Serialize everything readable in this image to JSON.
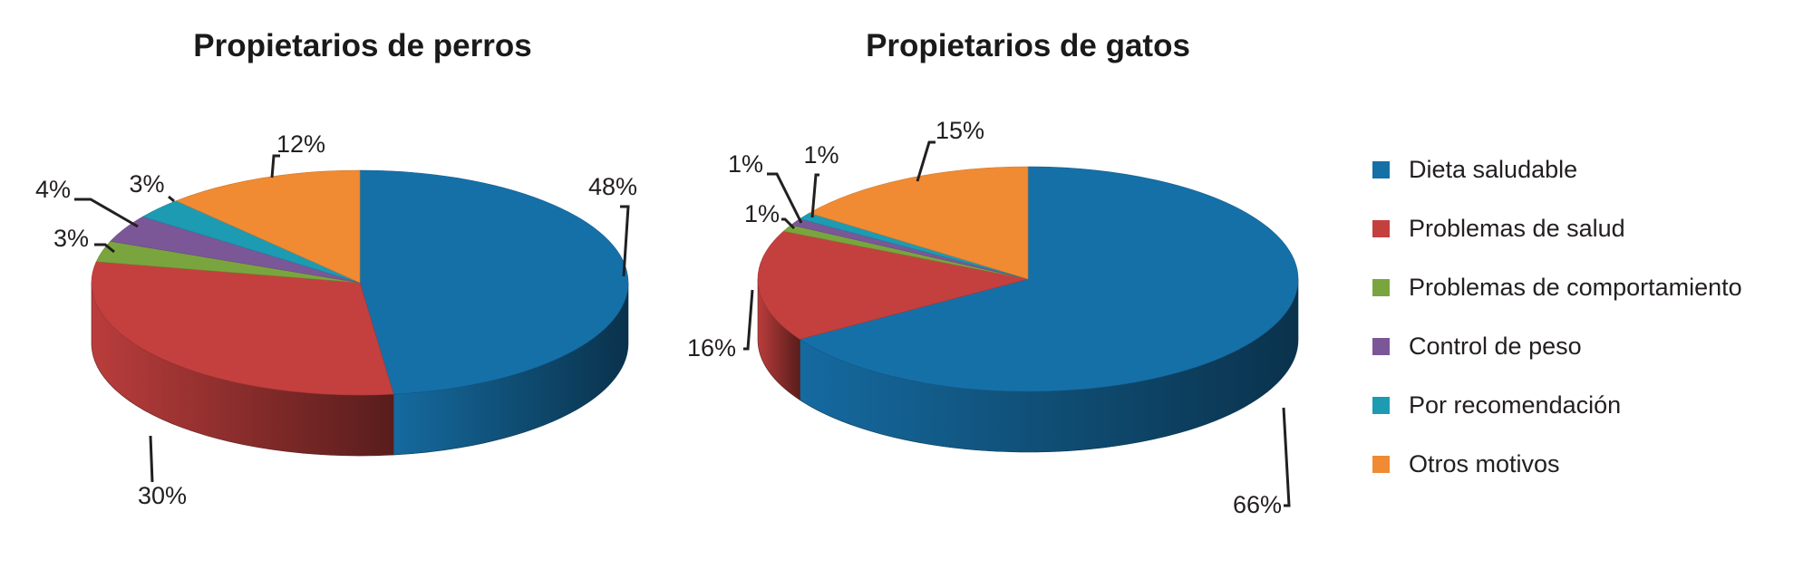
{
  "colors": {
    "Dieta saludable": "#1670a8",
    "Problemas de salud": "#c4403f",
    "Problemas de comportamiento": "#7aa53e",
    "Control de peso": "#7b5798",
    "Por recomendación": "#1d9bb3",
    "Otros motivos": "#f08b33"
  },
  "legend": [
    "Dieta saludable",
    "Problemas de salud",
    "Problemas de comportamiento",
    "Control de peso",
    "Por recomendación",
    "Otros motivos"
  ],
  "chart_data": [
    {
      "type": "pie",
      "title": "Propietarios de perros",
      "slices": [
        {
          "category": "Dieta saludable",
          "value": 48,
          "label": "48%"
        },
        {
          "category": "Problemas de salud",
          "value": 30,
          "label": "30%"
        },
        {
          "category": "Problemas de comportamiento",
          "value": 3,
          "label": "3%"
        },
        {
          "category": "Control de peso",
          "value": 4,
          "label": "4%"
        },
        {
          "category": "Por recomendación",
          "value": 3,
          "label": "3%"
        },
        {
          "category": "Otros motivos",
          "value": 12,
          "label": "12%"
        }
      ]
    },
    {
      "type": "pie",
      "title": "Propietarios de gatos",
      "slices": [
        {
          "category": "Dieta saludable",
          "value": 66,
          "label": "66%"
        },
        {
          "category": "Problemas de salud",
          "value": 16,
          "label": "16%"
        },
        {
          "category": "Problemas de comportamiento",
          "value": 1,
          "label": "1%"
        },
        {
          "category": "Control de peso",
          "value": 1,
          "label": "1%"
        },
        {
          "category": "Por recomendación",
          "value": 1,
          "label": "1%"
        },
        {
          "category": "Otros motivos",
          "value": 15,
          "label": "15%"
        }
      ]
    }
  ]
}
